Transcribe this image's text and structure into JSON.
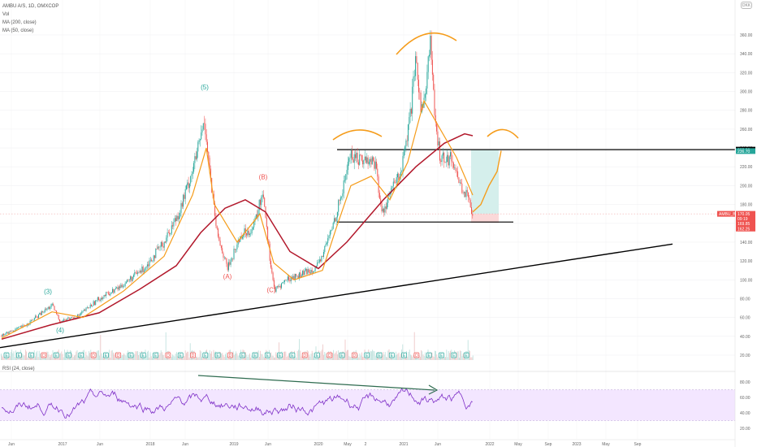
{
  "legend": {
    "symbol": "AMBU A/S, 1D, OMXCOP",
    "vol": "Vol",
    "ma200": "MA (200, close)",
    "ma50": "MA (50, close)"
  },
  "rsi_legend": "RSI (24, close)",
  "currency_btn": "DKK",
  "colors": {
    "up": "#26a69a",
    "down": "#ef5350",
    "ma200": "#b2182b",
    "ma50": "#f59c1a",
    "rsi": "#7e2fc7",
    "rsi_band": "#f3e6ff",
    "trend": "#000000"
  },
  "chart_data": [
    {
      "type": "candlestick",
      "title": "AMBU A/S, 1D, OMXCOP",
      "ylim": [
        20,
        370
      ],
      "y_ticks": [
        "360.00",
        "340.00",
        "320.00",
        "300.00",
        "280.00",
        "260.00",
        "240.00",
        "220.00",
        "200.00",
        "180.00",
        "160.00",
        "140.00",
        "120.00",
        "100.00",
        "80.00",
        "60.00",
        "40.00",
        "20.00"
      ],
      "x_ticks": [
        "Jun",
        "2017",
        "Jun",
        "2018",
        "Jun",
        "2019",
        "Jun",
        "2020",
        "May",
        "2",
        "2021",
        "Jun",
        "2022",
        "May",
        "Sep",
        "2023",
        "May",
        "Sep"
      ],
      "price_path": [
        {
          "t": 0,
          "p": 41
        },
        {
          "t": 30,
          "p": 52
        },
        {
          "t": 62,
          "p": 73
        },
        {
          "t": 72,
          "p": 56
        },
        {
          "t": 95,
          "p": 62
        },
        {
          "t": 120,
          "p": 80
        },
        {
          "t": 145,
          "p": 92
        },
        {
          "t": 175,
          "p": 112
        },
        {
          "t": 200,
          "p": 140
        },
        {
          "t": 220,
          "p": 175
        },
        {
          "t": 238,
          "p": 225
        },
        {
          "t": 250,
          "p": 270
        },
        {
          "t": 258,
          "p": 200
        },
        {
          "t": 265,
          "p": 150
        },
        {
          "t": 278,
          "p": 112
        },
        {
          "t": 295,
          "p": 148
        },
        {
          "t": 310,
          "p": 155
        },
        {
          "t": 322,
          "p": 195
        },
        {
          "t": 330,
          "p": 125
        },
        {
          "t": 336,
          "p": 88
        },
        {
          "t": 350,
          "p": 100
        },
        {
          "t": 370,
          "p": 106
        },
        {
          "t": 390,
          "p": 115
        },
        {
          "t": 405,
          "p": 150
        },
        {
          "t": 420,
          "p": 195
        },
        {
          "t": 428,
          "p": 232
        },
        {
          "t": 445,
          "p": 228
        },
        {
          "t": 460,
          "p": 225
        },
        {
          "t": 468,
          "p": 170
        },
        {
          "t": 480,
          "p": 195
        },
        {
          "t": 492,
          "p": 215
        },
        {
          "t": 502,
          "p": 265
        },
        {
          "t": 510,
          "p": 330
        },
        {
          "t": 518,
          "p": 275
        },
        {
          "t": 528,
          "p": 355
        },
        {
          "t": 534,
          "p": 260
        },
        {
          "t": 540,
          "p": 232
        },
        {
          "t": 555,
          "p": 228
        },
        {
          "t": 565,
          "p": 200
        },
        {
          "t": 572,
          "p": 190
        },
        {
          "t": 580,
          "p": 172
        }
      ],
      "ma50_path": [
        {
          "t": 0,
          "p": 38
        },
        {
          "t": 62,
          "p": 66
        },
        {
          "t": 100,
          "p": 60
        },
        {
          "t": 150,
          "p": 88
        },
        {
          "t": 200,
          "p": 125
        },
        {
          "t": 235,
          "p": 190
        },
        {
          "t": 252,
          "p": 240
        },
        {
          "t": 262,
          "p": 180
        },
        {
          "t": 290,
          "p": 140
        },
        {
          "t": 318,
          "p": 170
        },
        {
          "t": 335,
          "p": 118
        },
        {
          "t": 360,
          "p": 100
        },
        {
          "t": 395,
          "p": 110
        },
        {
          "t": 412,
          "p": 155
        },
        {
          "t": 430,
          "p": 200
        },
        {
          "t": 455,
          "p": 210
        },
        {
          "t": 478,
          "p": 185
        },
        {
          "t": 500,
          "p": 225
        },
        {
          "t": 520,
          "p": 290
        },
        {
          "t": 540,
          "p": 260
        },
        {
          "t": 560,
          "p": 230
        },
        {
          "t": 580,
          "p": 190
        }
      ],
      "ma200_path": [
        {
          "t": 0,
          "p": 37
        },
        {
          "t": 60,
          "p": 52
        },
        {
          "t": 120,
          "p": 65
        },
        {
          "t": 170,
          "p": 90
        },
        {
          "t": 215,
          "p": 115
        },
        {
          "t": 245,
          "p": 150
        },
        {
          "t": 275,
          "p": 176
        },
        {
          "t": 300,
          "p": 185
        },
        {
          "t": 325,
          "p": 172
        },
        {
          "t": 355,
          "p": 130
        },
        {
          "t": 390,
          "p": 112
        },
        {
          "t": 425,
          "p": 140
        },
        {
          "t": 470,
          "p": 185
        },
        {
          "t": 510,
          "p": 220
        },
        {
          "t": 545,
          "p": 245
        },
        {
          "t": 570,
          "p": 255
        },
        {
          "t": 580,
          "p": 253
        }
      ],
      "projection_path": [
        {
          "t": 580,
          "p": 172
        },
        {
          "t": 590,
          "p": 180
        },
        {
          "t": 600,
          "p": 200
        },
        {
          "t": 610,
          "p": 215
        },
        {
          "t": 615,
          "p": 237
        }
      ],
      "wave_labels": [
        {
          "label": "(3)",
          "t": 57,
          "p": 85,
          "color": "up"
        },
        {
          "label": "(4)",
          "t": 72,
          "p": 44,
          "color": "up"
        },
        {
          "label": "(5)",
          "t": 250,
          "p": 302,
          "color": "up"
        },
        {
          "label": "(A)",
          "t": 278,
          "p": 101,
          "color": "down"
        },
        {
          "label": "(B)",
          "t": 322,
          "p": 207,
          "color": "down"
        },
        {
          "label": "(C)",
          "t": 332,
          "p": 87,
          "color": "down"
        }
      ],
      "price_labels": [
        {
          "text": "238.20",
          "p": 238.2,
          "bg": "#000000"
        },
        {
          "text": "236.70",
          "p": 236.7,
          "bg": "#26a69a"
        },
        {
          "text": "AMBU_B",
          "p": 170.05,
          "bg": "#ef5350"
        },
        {
          "text": "170.05",
          "p": 170.05,
          "bg": "#ef5350"
        },
        {
          "text": "09:19",
          "p": 164.8,
          "bg": "#ef5350"
        },
        {
          "text": "169.85",
          "p": 159.6,
          "bg": "#ef5350"
        },
        {
          "text": "162.25",
          "p": 154.4,
          "bg": "#ef5350"
        }
      ],
      "levels": {
        "resistance": 238.2,
        "support": 162.25,
        "current": 170.05
      },
      "event_markers": [
        "E",
        "E",
        "E",
        "D",
        "E",
        "E",
        "E",
        "D",
        "E",
        "D",
        "E",
        "E",
        "E",
        "D",
        "E",
        "D",
        "E",
        "E",
        "D",
        "E",
        "E",
        "E",
        "E",
        "E",
        "D",
        "E",
        "D",
        "E",
        "D",
        "E",
        "E",
        "E",
        "E",
        "D",
        "E",
        "E",
        "E",
        "E"
      ]
    },
    {
      "type": "line",
      "title": "RSI (24, close)",
      "ylim": [
        20,
        95
      ],
      "y_ticks": [
        "80.00",
        "60.00",
        "40.00",
        "20.00"
      ],
      "band": [
        30,
        70
      ]
    }
  ]
}
